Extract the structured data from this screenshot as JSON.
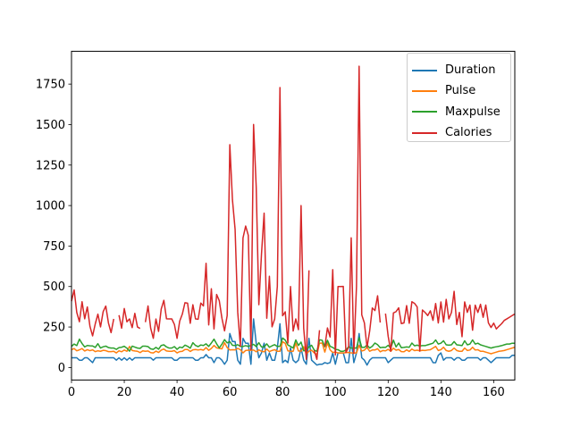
{
  "figure": {
    "background": "#ffffff"
  },
  "chart_data": {
    "type": "line",
    "title": "",
    "xlabel": "",
    "ylabel": "",
    "grid": false,
    "xlim": [
      0,
      168
    ],
    "ylim": [
      -77.3,
      1952.7
    ],
    "x_ticks": [
      0,
      20,
      40,
      60,
      80,
      100,
      120,
      140,
      160
    ],
    "y_ticks": [
      0,
      250,
      500,
      750,
      1000,
      1250,
      1500,
      1750
    ],
    "legend": {
      "position": "upper right"
    },
    "series": [
      {
        "name": "Duration",
        "color": "#1f77b4",
        "values": [
          60,
          60,
          60,
          45,
          45,
          60,
          60,
          45,
          30,
          60,
          60,
          60,
          60,
          60,
          60,
          60,
          60,
          45,
          60,
          45,
          60,
          45,
          60,
          45,
          60,
          60,
          60,
          60,
          60,
          60,
          60,
          45,
          60,
          60,
          60,
          60,
          60,
          60,
          60,
          45,
          45,
          60,
          60,
          60,
          60,
          60,
          60,
          45,
          45,
          60,
          60,
          80,
          60,
          60,
          30,
          60,
          60,
          45,
          20,
          45,
          210,
          160,
          160,
          45,
          20,
          180,
          150,
          150,
          20,
          300,
          150,
          60,
          90,
          150,
          45,
          90,
          45,
          45,
          120,
          270,
          30,
          45,
          30,
          120,
          45,
          30,
          45,
          120,
          45,
          20,
          180,
          45,
          30,
          15,
          20,
          20,
          30,
          25,
          30,
          90,
          20,
          90,
          90,
          90,
          30,
          30,
          180,
          30,
          90,
          210,
          60,
          45,
          15,
          45,
          60,
          60,
          60,
          60,
          60,
          60,
          30,
          45,
          60,
          60,
          60,
          60,
          60,
          60,
          60,
          60,
          60,
          60,
          60,
          60,
          60,
          60,
          60,
          30,
          30,
          75,
          90,
          45,
          60,
          60,
          60,
          45,
          60,
          60,
          45,
          45,
          60,
          60,
          60,
          60,
          60,
          45,
          60,
          60,
          45,
          30,
          45,
          60,
          60,
          60,
          60,
          60,
          60,
          75,
          75
        ]
      },
      {
        "name": "Pulse",
        "color": "#ff7f0e",
        "values": [
          110,
          117,
          103,
          109,
          117,
          102,
          110,
          104,
          109,
          98,
          103,
          100,
          106,
          104,
          98,
          98,
          100,
          90,
          103,
          97,
          108,
          100,
          130,
          105,
          102,
          100,
          92,
          103,
          100,
          102,
          92,
          90,
          101,
          93,
          107,
          114,
          102,
          100,
          100,
          104,
          90,
          98,
          100,
          111,
          111,
          99,
          109,
          111,
          108,
          111,
          107,
          123,
          106,
          118,
          136,
          121,
          118,
          115,
          153,
          123,
          108,
          110,
          109,
          118,
          110,
          90,
          105,
          107,
          106,
          108,
          97,
          109,
          100,
          97,
          114,
          98,
          105,
          110,
          100,
          100,
          159,
          149,
          103,
          100,
          100,
          151,
          102,
          100,
          129,
          83,
          101,
          107,
          90,
          80,
          150,
          151,
          95,
          152,
          109,
          93,
          95,
          90,
          90,
          90,
          92,
          93,
          90,
          90,
          90,
          137,
          102,
          107,
          124,
          100,
          108,
          108,
          116,
          97,
          105,
          103,
          112,
          100,
          119,
          107,
          111,
          98,
          97,
          109,
          99,
          114,
          104,
          107,
          103,
          106,
          105,
          108,
          110,
          120,
          130,
          105,
          110,
          125,
          105,
          100,
          105,
          120,
          105,
          100,
          100,
          120,
          105,
          108,
          125,
          108,
          110,
          100,
          100,
          95,
          90,
          85,
          90,
          95,
          100,
          102,
          105,
          110,
          115,
          120,
          125
        ]
      },
      {
        "name": "Maxpulse",
        "color": "#2ca02c",
        "values": [
          130,
          145,
          135,
          175,
          148,
          127,
          136,
          134,
          133,
          124,
          147,
          120,
          128,
          132,
          123,
          120,
          120,
          112,
          123,
          125,
          131,
          119,
          101,
          132,
          126,
          120,
          118,
          132,
          132,
          129,
          115,
          112,
          124,
          113,
          136,
          140,
          127,
          120,
          120,
          129,
          112,
          126,
          122,
          138,
          131,
          119,
          153,
          136,
          129,
          139,
          136,
          146,
          130,
          151,
          175,
          146,
          121,
          144,
          172,
          152,
          160,
          137,
          135,
          141,
          130,
          130,
          135,
          130,
          136,
          143,
          129,
          153,
          127,
          127,
          146,
          125,
          134,
          141,
          130,
          131,
          182,
          169,
          139,
          130,
          120,
          170,
          136,
          157,
          103,
          107,
          127,
          137,
          107,
          100,
          171,
          168,
          128,
          168,
          131,
          124,
          112,
          110,
          100,
          100,
          108,
          128,
          120,
          120,
          120,
          184,
          124,
          124,
          139,
          120,
          131,
          151,
          141,
          122,
          125,
          124,
          137,
          120,
          169,
          127,
          151,
          122,
          124,
          127,
          125,
          151,
          134,
          138,
          133,
          135,
          135,
          140,
          145,
          150,
          170,
          145,
          150,
          165,
          140,
          138,
          140,
          160,
          140,
          138,
          135,
          165,
          140,
          145,
          170,
          145,
          150,
          140,
          135,
          130,
          125,
          120,
          125,
          128,
          131,
          135,
          140,
          145,
          145,
          150,
          150
        ]
      },
      {
        "name": "Calories",
        "color": "#d62728",
        "values": [
          409.1,
          479.0,
          340.0,
          282.4,
          406.0,
          300.5,
          374.0,
          253.3,
          195.1,
          269.0,
          329.3,
          250.7,
          345.3,
          379.3,
          275.0,
          215.2,
          300.0,
          null,
          323.0,
          243.0,
          364.2,
          282.0,
          300.0,
          246.0,
          334.5,
          250.0,
          241.0,
          null,
          280.0,
          380.3,
          243.0,
          180.1,
          299.0,
          223.0,
          361.0,
          415.0,
          300.5,
          300.1,
          300.0,
          266.0,
          180.1,
          286.0,
          329.4,
          400.0,
          397.0,
          273.0,
          387.6,
          300.0,
          298.0,
          397.6,
          380.2,
          643.1,
          263.0,
          486.0,
          238.0,
          450.7,
          413.0,
          305.0,
          226.4,
          321.0,
          1376.0,
          1034.4,
          853.0,
          341.0,
          131.4,
          800.4,
          873.4,
          816.0,
          110.4,
          1500.2,
          1115.0,
          387.6,
          700.0,
          953.2,
          304.0,
          563.2,
          251.0,
          300.0,
          500.4,
          1729.0,
          319.2,
          344.0,
          151.1,
          500.0,
          225.3,
          300.0,
          234.0,
          1000.1,
          242.0,
          50.3,
          600.1,
          null,
          105.3,
          50.5,
          230.4,
          null,
          128.2,
          244.2,
          188.2,
          604.1,
          77.7,
          500.0,
          500.0,
          500.4,
          92.7,
          124.0,
          800.3,
          86.2,
          500.3,
          1860.4,
          325.2,
          275.0,
          124.2,
          225.3,
          367.6,
          351.7,
          443.0,
          277.4,
          null,
          332.7,
          193.9,
          100.7,
          336.7,
          344.9,
          368.5,
          271.0,
          275.3,
          382.0,
          273.0,
          406.0,
          396.0,
          374.0,
          101.0,
          355.2,
          340.0,
          320.6,
          350.0,
          290.8,
          395.4,
          275.0,
          405.1,
          280.3,
          420.4,
          300.0,
          340.2,
          470.2,
          265.4,
          340.0,
          190.3,
          405.0,
          340.4,
          385.2,
          230.1,
          385.0,
          340.0,
          390.2,
          310.0,
          385.4,
          275.3,
          247.2,
          274.0,
          238.1,
          255.0,
          270.3,
          290.8,
          300.4,
          310.2,
          320.4,
          330.4
        ]
      }
    ]
  }
}
